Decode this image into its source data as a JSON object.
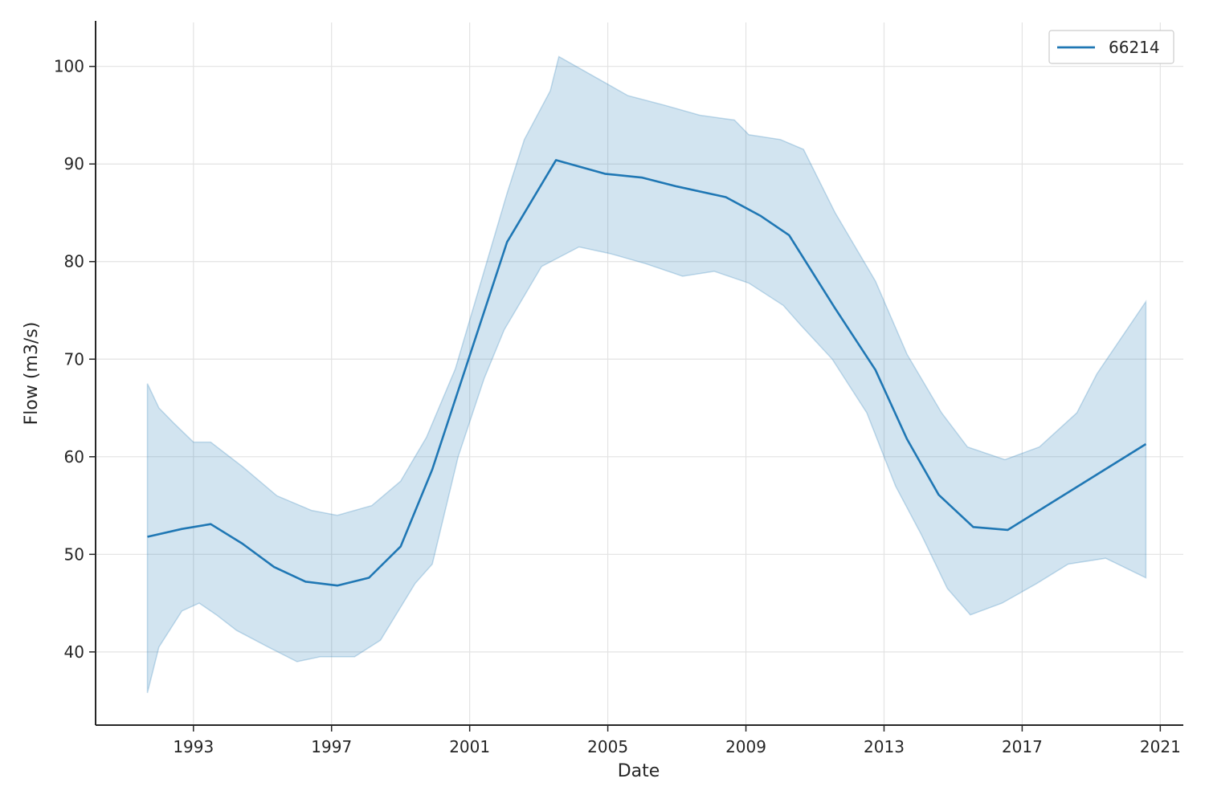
{
  "chart_data": {
    "type": "line",
    "title": "",
    "xlabel": "Date",
    "ylabel": "Flow (m3/s)",
    "x_tick_labels": [
      "1993",
      "1997",
      "2001",
      "2005",
      "2009",
      "2013",
      "2017",
      "2021"
    ],
    "y_tick_labels": [
      "40",
      "50",
      "60",
      "70",
      "80",
      "90",
      "100"
    ],
    "xlim": [
      "1990-03-01",
      "2021-09-01"
    ],
    "ylim": [
      32.5,
      104.5
    ],
    "grid": true,
    "legend_position": "top-right",
    "colors": {
      "line": "#1f77b4",
      "band": "#1f77b4"
    },
    "series": [
      {
        "name": "66214",
        "x": [
          "1991-09-01",
          "1992-09-01",
          "1993-07-01",
          "1994-06-01",
          "1995-05-01",
          "1996-04-01",
          "1997-03-01",
          "1998-02-01",
          "1999-01-01",
          "1999-12-01",
          "2002-02-01",
          "2003-07-01",
          "2004-12-01",
          "2006-01-01",
          "2007-01-01",
          "2008-06-01",
          "2009-06-01",
          "2010-04-01",
          "2011-08-01",
          "2012-10-01",
          "2013-09-01",
          "2014-08-01",
          "2015-08-01",
          "2016-08-01",
          "2020-08-01"
        ],
        "values": [
          51.8,
          52.6,
          53.1,
          51.1,
          48.7,
          47.2,
          46.8,
          47.6,
          50.8,
          58.7,
          82.0,
          90.4,
          89.0,
          88.6,
          87.7,
          86.6,
          84.7,
          82.7,
          75.2,
          68.9,
          61.8,
          56.1,
          52.8,
          52.5,
          61.3
        ],
        "ci_lower_x": [
          "1991-09-01",
          "1992-01-01",
          "1992-09-01",
          "1993-03-01",
          "1993-09-01",
          "1994-04-01",
          "1995-03-01",
          "1996-01-01",
          "1996-09-01",
          "1997-09-01",
          "1998-06-01",
          "1999-06-01",
          "1999-12-01",
          "2000-09-01",
          "2001-06-01",
          "2002-01-01",
          "2002-07-01",
          "2003-02-01",
          "2004-03-01",
          "2005-02-01",
          "2006-02-01",
          "2007-03-01",
          "2008-02-01",
          "2009-02-01",
          "2010-02-01",
          "2010-08-01",
          "2011-07-01",
          "2012-07-01",
          "2013-05-01",
          "2014-02-01",
          "2014-11-01",
          "2015-07-01",
          "2016-06-01",
          "2017-06-01",
          "2018-05-01",
          "2019-06-01",
          "2020-08-01"
        ],
        "ci_lower": [
          35.8,
          40.5,
          44.2,
          45.0,
          43.8,
          42.2,
          40.5,
          39.0,
          39.5,
          39.5,
          41.2,
          47.0,
          49.0,
          60.0,
          68.0,
          73.0,
          76.0,
          79.5,
          81.5,
          80.8,
          79.8,
          78.5,
          79.0,
          77.8,
          75.5,
          73.5,
          70.0,
          64.5,
          57.0,
          52.0,
          46.5,
          43.8,
          45.0,
          47.0,
          49.0,
          49.6,
          47.6
        ],
        "ci_upper_x": [
          "1991-09-01",
          "1992-01-01",
          "1992-06-01",
          "1993-01-01",
          "1993-07-01",
          "1994-06-01",
          "1995-06-01",
          "1996-06-01",
          "1997-03-01",
          "1998-03-01",
          "1999-01-01",
          "1999-10-01",
          "2000-08-01",
          "2001-05-01",
          "2002-02-01",
          "2002-08-01",
          "2003-05-01",
          "2003-08-01",
          "2004-08-01",
          "2005-08-01",
          "2006-09-01",
          "2007-09-01",
          "2008-09-01",
          "2009-02-01",
          "2010-01-01",
          "2010-09-01",
          "2011-08-01",
          "2012-10-01",
          "2013-09-01",
          "2014-09-01",
          "2015-06-01",
          "2016-07-01",
          "2017-07-01",
          "2018-08-01",
          "2019-03-01",
          "2020-08-01"
        ],
        "ci_upper": [
          67.5,
          65.0,
          63.5,
          61.5,
          61.5,
          59.0,
          56.0,
          54.5,
          54.0,
          55.0,
          57.5,
          62.0,
          69.0,
          78.0,
          87.0,
          92.5,
          97.5,
          101.0,
          99.0,
          97.0,
          96.0,
          95.0,
          94.5,
          93.0,
          92.5,
          91.5,
          85.0,
          78.0,
          70.5,
          64.5,
          61.0,
          59.7,
          61.0,
          64.5,
          68.5,
          75.9
        ]
      }
    ]
  }
}
